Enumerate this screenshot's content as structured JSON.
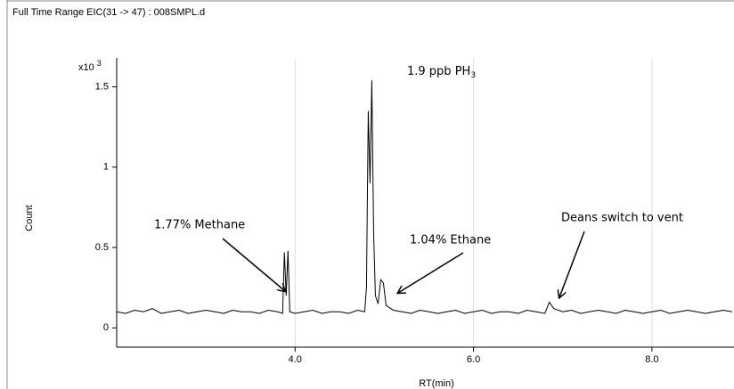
{
  "chart_data": {
    "type": "line",
    "title": "Full Time Range EIC(31 -> 47) : 008SMPL.d",
    "y_multiplier": {
      "base": "x10",
      "exponent": "3"
    },
    "y_label": "Count",
    "x_label": "RT(min)",
    "annotations": [
      {
        "text": "1.9 ppb PH",
        "sub": "3"
      },
      {
        "text": "1.77% Methane"
      },
      {
        "text": "1.04% Ethane"
      },
      {
        "text": "Deans switch to vent"
      }
    ],
    "color": "#000000",
    "grid": "x",
    "xlim": [
      2.0,
      8.92
    ],
    "ylim": [
      -0.12,
      1.68
    ],
    "xticks": [
      {
        "value": 4,
        "label": "4.0"
      },
      {
        "value": 6,
        "label": "6.0"
      },
      {
        "value": 8,
        "label": "8.0"
      }
    ],
    "yticks": [
      0,
      0.5,
      1,
      1.5
    ],
    "x": [
      2.0,
      2.1,
      2.2,
      2.3,
      2.4,
      2.5,
      2.6,
      2.7,
      2.8,
      2.9,
      3.0,
      3.1,
      3.2,
      3.3,
      3.4,
      3.5,
      3.6,
      3.7,
      3.8,
      3.86,
      3.88,
      3.9,
      3.92,
      3.94,
      4.0,
      4.1,
      4.2,
      4.3,
      4.4,
      4.5,
      4.6,
      4.7,
      4.78,
      4.8,
      4.82,
      4.84,
      4.86,
      4.88,
      4.9,
      4.93,
      4.96,
      4.99,
      5.02,
      5.1,
      5.2,
      5.3,
      5.4,
      5.5,
      5.6,
      5.7,
      5.8,
      5.9,
      6.0,
      6.1,
      6.2,
      6.3,
      6.4,
      6.5,
      6.6,
      6.7,
      6.8,
      6.85,
      6.9,
      7.0,
      7.1,
      7.2,
      7.3,
      7.4,
      7.5,
      7.6,
      7.7,
      7.8,
      7.9,
      8.0,
      8.1,
      8.2,
      8.3,
      8.4,
      8.5,
      8.6,
      8.7,
      8.8,
      8.9
    ],
    "values": [
      0.1,
      0.09,
      0.11,
      0.1,
      0.12,
      0.09,
      0.1,
      0.11,
      0.09,
      0.1,
      0.11,
      0.1,
      0.09,
      0.11,
      0.1,
      0.1,
      0.09,
      0.11,
      0.1,
      0.09,
      0.47,
      0.2,
      0.48,
      0.1,
      0.09,
      0.1,
      0.11,
      0.09,
      0.1,
      0.1,
      0.09,
      0.11,
      0.1,
      0.25,
      1.35,
      0.9,
      1.54,
      0.6,
      0.2,
      0.15,
      0.3,
      0.28,
      0.14,
      0.11,
      0.1,
      0.09,
      0.11,
      0.1,
      0.09,
      0.1,
      0.11,
      0.09,
      0.1,
      0.11,
      0.09,
      0.1,
      0.1,
      0.09,
      0.11,
      0.1,
      0.09,
      0.16,
      0.12,
      0.1,
      0.11,
      0.09,
      0.1,
      0.11,
      0.1,
      0.09,
      0.11,
      0.1,
      0.09,
      0.1,
      0.11,
      0.09,
      0.1,
      0.11,
      0.1,
      0.09,
      0.1,
      0.11,
      0.1
    ]
  }
}
